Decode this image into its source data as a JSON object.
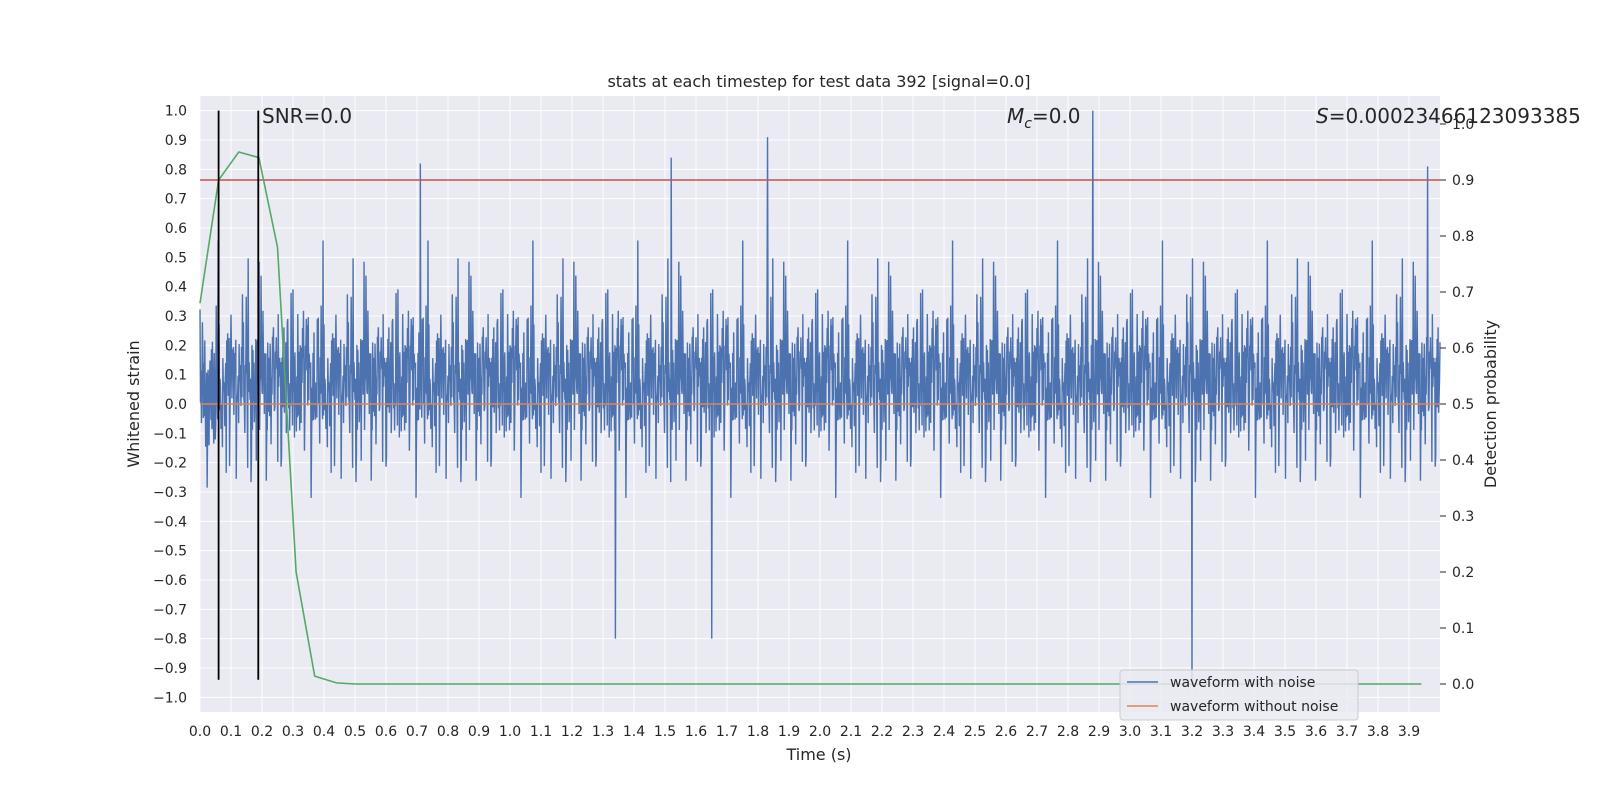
{
  "chart_data": {
    "type": "line",
    "title": "stats at each timestep for test data 392 [signal=0.0]",
    "xlabel": "Time (s)",
    "ylabel": "Whitened strain",
    "ylabel_right": "Detection probability",
    "xlim": [
      0.0,
      4.0
    ],
    "ylim": [
      -1.05,
      1.05
    ],
    "ylim_right": [
      -0.05,
      1.05
    ],
    "x_ticks": [
      "0.0",
      "0.1",
      "0.2",
      "0.3",
      "0.4",
      "0.5",
      "0.6",
      "0.7",
      "0.8",
      "0.9",
      "1.0",
      "1.1",
      "1.2",
      "1.3",
      "1.4",
      "1.5",
      "1.6",
      "1.7",
      "1.8",
      "1.9",
      "2.0",
      "2.1",
      "2.2",
      "2.3",
      "2.4",
      "2.5",
      "2.6",
      "2.7",
      "2.8",
      "2.9",
      "3.0",
      "3.1",
      "3.2",
      "3.3",
      "3.4",
      "3.5",
      "3.6",
      "3.7",
      "3.8",
      "3.9"
    ],
    "y_ticks": [
      "1.0",
      "0.9",
      "0.8",
      "0.7",
      "0.6",
      "0.5",
      "0.4",
      "0.3",
      "0.2",
      "0.1",
      "0.0",
      "−0.1",
      "−0.2",
      "−0.3",
      "−0.4",
      "−0.5",
      "−0.6",
      "−0.7",
      "−0.8",
      "−0.9",
      "−1.0"
    ],
    "y_ticks_right": [
      "1.0",
      "0.9",
      "0.8",
      "0.7",
      "0.6",
      "0.5",
      "0.4",
      "0.3",
      "0.2",
      "0.1",
      "0.0"
    ],
    "grid": true,
    "legend_position": "lower-right",
    "annotations": {
      "snr": "SNR=0.0",
      "mc_symbol": "M",
      "mc_sub": "c",
      "mc_value": "=0.0",
      "s_symbol": "S",
      "s_value": "=0.00023466123093385"
    },
    "colors": {
      "noise": "#4c72b0",
      "clean": "#dd8452",
      "probability": "#55a868",
      "threshold": "#c44e52",
      "markers": "#000000",
      "plot_bg": "#eaeaf2",
      "grid": "#ffffff"
    },
    "series": [
      {
        "name": "waveform with noise",
        "axis": "left",
        "description": "dense whitened noise, amplitude mostly within ±0.6",
        "peaks": [
          {
            "x": 0.71,
            "y": 0.82
          },
          {
            "x": 1.52,
            "y": 0.84
          },
          {
            "x": 1.83,
            "y": 0.91
          },
          {
            "x": 2.88,
            "y": 1.0
          },
          {
            "x": 3.96,
            "y": 0.81
          },
          {
            "x": 3.2,
            "y": -0.96
          },
          {
            "x": 1.34,
            "y": -0.8
          },
          {
            "x": 1.65,
            "y": -0.8
          }
        ]
      },
      {
        "name": "waveform without noise",
        "axis": "left",
        "x": [
          0.0,
          4.0
        ],
        "y": [
          0.0,
          0.0
        ]
      },
      {
        "name": "detection probability",
        "axis": "right",
        "x": [
          0.0,
          0.06,
          0.125,
          0.19,
          0.25,
          0.31,
          0.37,
          0.44,
          0.5,
          1.0,
          2.0,
          3.0,
          3.94
        ],
        "y": [
          0.68,
          0.9,
          0.95,
          0.94,
          0.78,
          0.2,
          0.014,
          0.002,
          0.0,
          0.0,
          0.0,
          0.0,
          0.0
        ]
      }
    ],
    "threshold": {
      "axis": "right",
      "y": 0.9
    },
    "vertical_lines": [
      {
        "x": 0.06,
        "ymin": -0.94,
        "ymax": 1.0
      },
      {
        "x": 0.188,
        "ymin": -0.94,
        "ymax": 1.0
      }
    ]
  }
}
